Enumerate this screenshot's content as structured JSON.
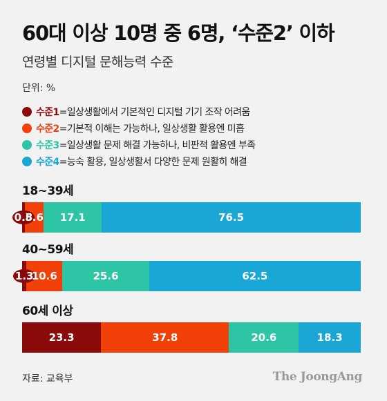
{
  "header": {
    "title": "60대 이상 10명 중 6명, ‘수준2’ 이하",
    "subtitle": "연령별 디지털 문해능력 수준",
    "unit": "단위: %"
  },
  "legend": [
    {
      "level": "수준1",
      "desc": "=일상생활에서 기본적인 디지털 기기 조작 어려움",
      "color": "#8b0a0a"
    },
    {
      "level": "수준2",
      "desc": "=기본적 이해는 가능하나, 일상생활 활용엔 미흡",
      "color": "#f2400a"
    },
    {
      "level": "수준3",
      "desc": "=일상생활 문제 해결 가능하나, 비판적 활용엔 부족",
      "color": "#2ec4a6"
    },
    {
      "level": "수준4",
      "desc": "=능숙 활용, 일상생활서 다양한 문제 원활히 해결",
      "color": "#1aa7d6"
    }
  ],
  "footer": {
    "source": "자료: 교육부",
    "brand": "The JoongAng"
  },
  "chart_data": {
    "type": "bar",
    "orientation": "horizontal",
    "stacked": true,
    "title": "60대 이상 10명 중 6명, ‘수준2’ 이하",
    "subtitle": "연령별 디지털 문해능력 수준",
    "unit": "%",
    "categories": [
      "18~39세",
      "40~59세",
      "60세 이상"
    ],
    "series": [
      {
        "name": "수준1",
        "values": [
          0.8,
          1.3,
          23.3
        ],
        "labels": [
          "0.8",
          "1.3",
          "23.3"
        ],
        "color": "#8b0a0a"
      },
      {
        "name": "수준2",
        "values": [
          5.6,
          10.6,
          37.8
        ],
        "labels": [
          "5.6",
          "10.6",
          "37.8"
        ],
        "color": "#f2400a"
      },
      {
        "name": "수준3",
        "values": [
          17.1,
          25.6,
          20.6
        ],
        "labels": [
          "17.1",
          "25.6",
          "20.6"
        ],
        "color": "#2ec4a6"
      },
      {
        "name": "수준4",
        "values": [
          76.5,
          62.5,
          18.3
        ],
        "labels": [
          "76.5",
          "62.5",
          "18.3"
        ],
        "color": "#1aa7d6"
      }
    ],
    "highlighted_category": "60세 이상",
    "legend_position": "top"
  }
}
